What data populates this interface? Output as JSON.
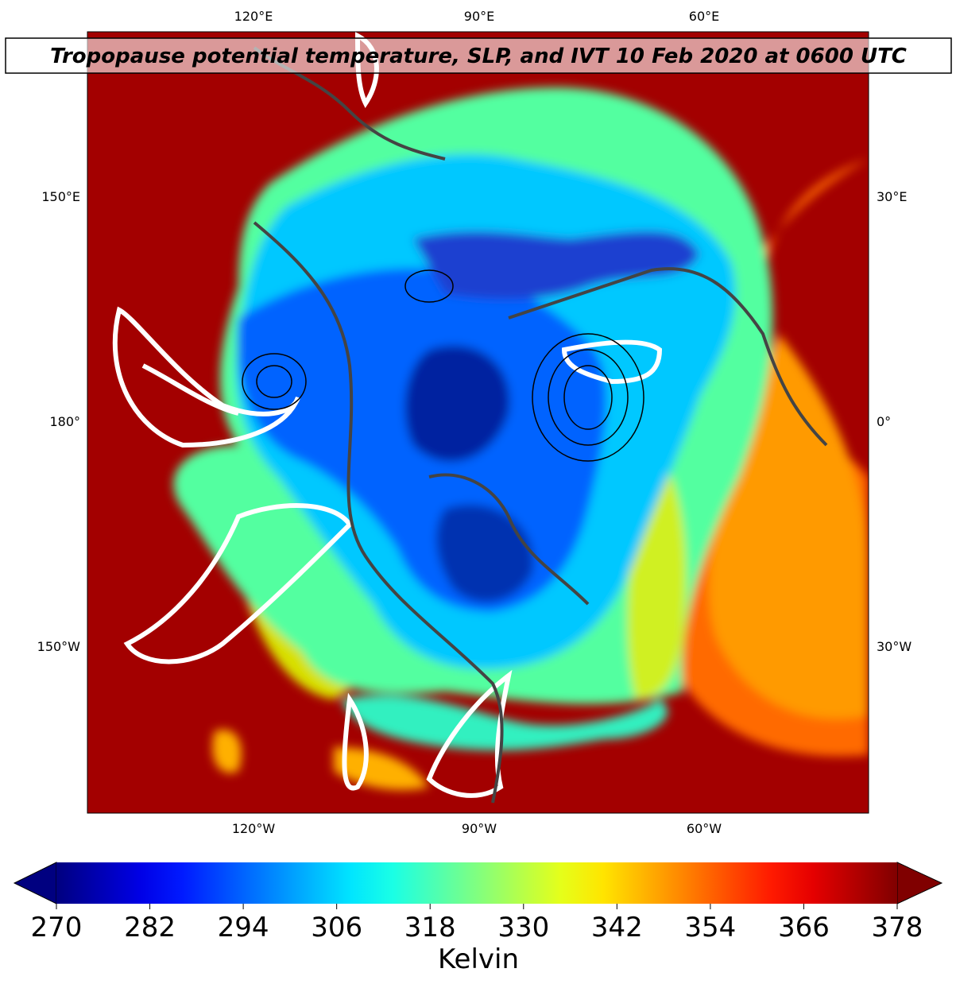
{
  "map": {
    "title": "Tropopause potential temperature, SLP, and IVT 10 Feb 2020 at 0600 UTC",
    "top_labels": [
      "120°E",
      "90°E",
      "60°E"
    ],
    "bottom_labels": [
      "120°W",
      "90°W",
      "60°W"
    ],
    "left_labels": [
      "150°E",
      "180°",
      "150°W"
    ],
    "right_labels": [
      "30°E",
      "0°",
      "30°W"
    ]
  },
  "colorbar": {
    "label": "Kelvin",
    "lim": [
      270,
      378
    ],
    "ticks": [
      270,
      282,
      294,
      306,
      318,
      330,
      342,
      354,
      366,
      378
    ],
    "colormap": "jet"
  }
}
